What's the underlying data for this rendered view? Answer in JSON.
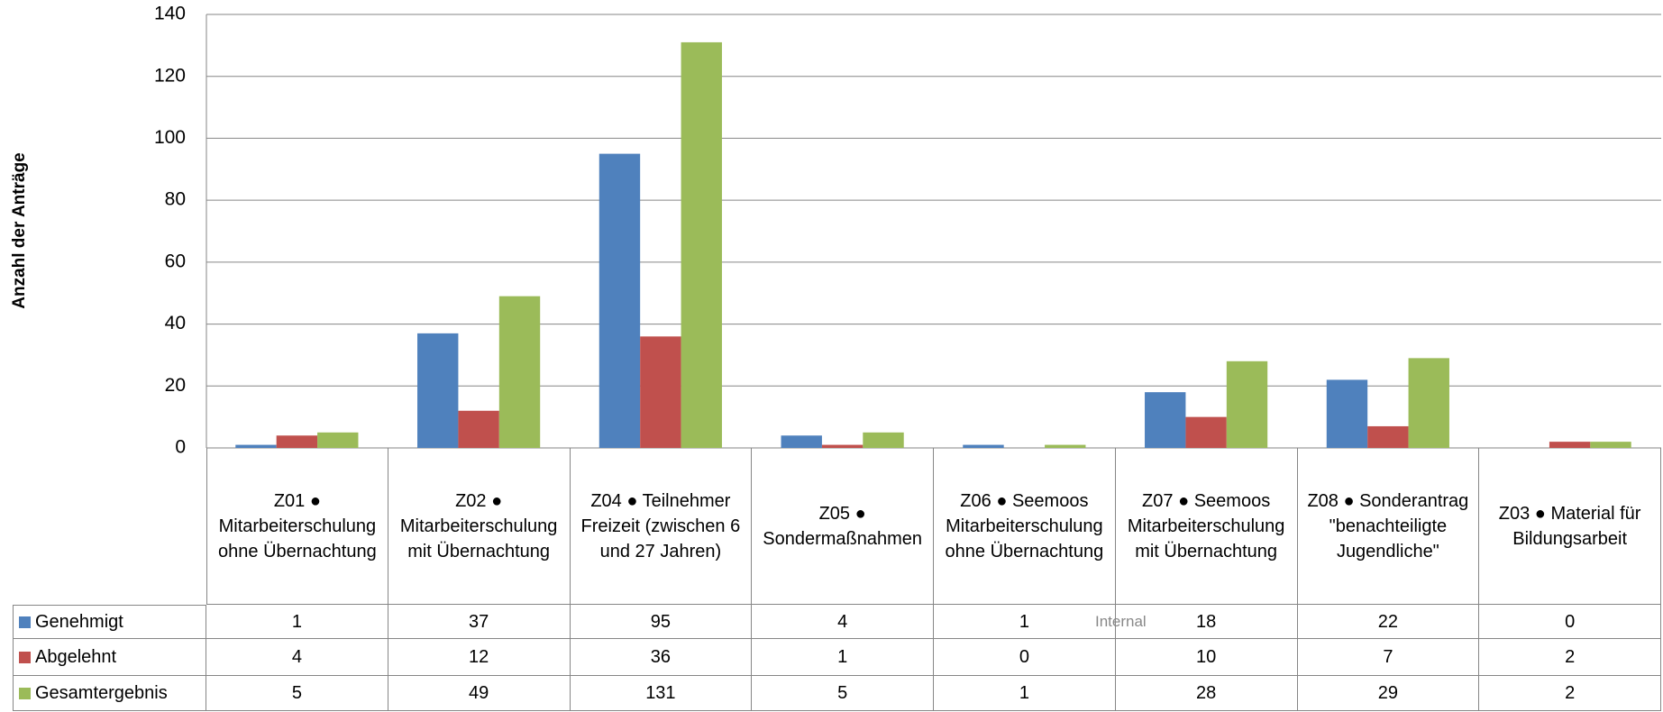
{
  "chart_data": {
    "type": "bar",
    "y_label": "Anzahl der Anträge",
    "watermark": "Internal",
    "categories": [
      "Z01 ● Mitarbeiterschulung ohne Übernachtung",
      "Z02 ● Mitarbeiterschulung mit Übernachtung",
      "Z04 ● Teilnehmer Freizeit (zwischen 6 und 27 Jahren)",
      "Z05 ● Sondermaßnahmen",
      "Z06 ● Seemoos Mitarbeiterschulung ohne Übernachtung",
      "Z07 ● Seemoos Mitarbeiterschulung mit Übernachtung",
      "Z08 ● Sonderantrag \"benachteiligte Jugendliche\"",
      "Z03 ● Material für Bildungsarbeit"
    ],
    "series": [
      {
        "name": "Genehmigt",
        "color": "#4f81bd",
        "values": [
          1,
          37,
          95,
          4,
          1,
          18,
          22,
          0
        ]
      },
      {
        "name": "Abgelehnt",
        "color": "#c0504d",
        "values": [
          4,
          12,
          36,
          1,
          0,
          10,
          7,
          2
        ]
      },
      {
        "name": "Gesamtergebnis",
        "color": "#9bbb59",
        "values": [
          5,
          49,
          131,
          5,
          1,
          28,
          29,
          2
        ]
      }
    ],
    "ylim": [
      0,
      140
    ],
    "yticks": [
      0,
      20,
      40,
      60,
      80,
      100,
      120,
      140
    ],
    "grid": true
  }
}
